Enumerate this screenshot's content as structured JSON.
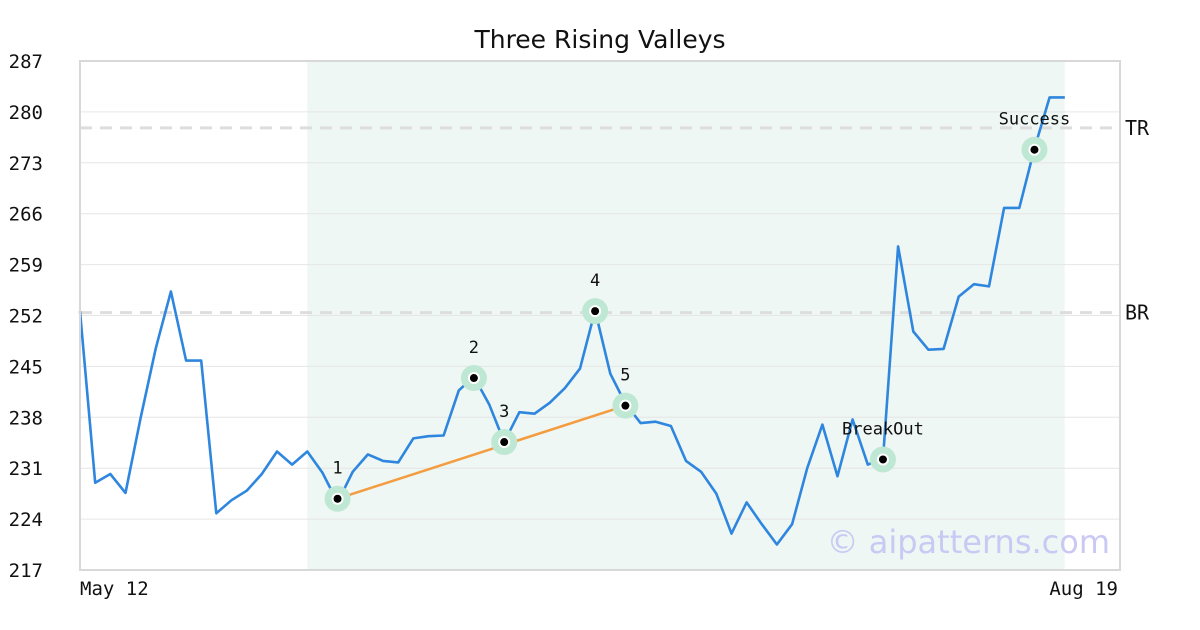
{
  "chart_data": {
    "type": "line",
    "title": "Three Rising Valleys",
    "xlabel": "",
    "ylabel": "",
    "ylim": [
      217,
      287
    ],
    "y_ticks": [
      217,
      224,
      231,
      238,
      245,
      252,
      259,
      266,
      273,
      280,
      287
    ],
    "y_tick_labels": [
      "217",
      "224",
      "231",
      "238",
      "245",
      "252",
      "259",
      "266",
      "273",
      "280",
      "287"
    ],
    "x_tick_labels": [
      "May 12",
      "Aug 19"
    ],
    "grid": "horizontal",
    "pattern_shaded_range": [
      15,
      65
    ],
    "series": [
      {
        "color": "#2e86de",
        "values": [
          252.6,
          229.0,
          230.2,
          227.6,
          237.9,
          247.5,
          255.3,
          245.8,
          245.8,
          224.8,
          226.6,
          227.9,
          230.2,
          233.3,
          231.5,
          233.3,
          230.4,
          226.3,
          230.5,
          232.9,
          232.0,
          231.8,
          235.1,
          235.4,
          235.5,
          241.7,
          243.6,
          239.8,
          234.6,
          238.7,
          238.5,
          240.0,
          242.0,
          244.7,
          252.7,
          244.0,
          239.9,
          237.2,
          237.4,
          236.8,
          232.0,
          230.5,
          227.5,
          222.0,
          226.3,
          223.3,
          220.5,
          223.3,
          231.0,
          237.0,
          229.9,
          237.7,
          231.5,
          232.3,
          261.5,
          249.8,
          247.3,
          247.4,
          254.6,
          256.3,
          256.0,
          266.8,
          266.8,
          275.0,
          282.0,
          282.0
        ]
      }
    ],
    "markers": [
      {
        "index": 17,
        "value": 226.8,
        "label": "1"
      },
      {
        "index": 26,
        "value": 243.4,
        "label": "2"
      },
      {
        "index": 28,
        "value": 234.6,
        "label": "3"
      },
      {
        "index": 34,
        "value": 252.6,
        "label": "4"
      },
      {
        "index": 36,
        "value": 239.6,
        "label": "5"
      },
      {
        "index": 53,
        "value": 232.2,
        "label": "BreakOut"
      },
      {
        "index": 63,
        "value": 274.8,
        "label": "Success"
      }
    ],
    "trendline": {
      "from_index": 17,
      "from_value": 226.8,
      "to_index": 36,
      "to_value": 239.6,
      "color": "#f39c40"
    },
    "reference_lines": [
      {
        "value": 277.8,
        "label": "TR"
      },
      {
        "value": 252.4,
        "label": "BR"
      }
    ],
    "colors": {
      "line": "#2e86de",
      "trendline": "#f39c40",
      "marker_halo": "#bfe8d4",
      "shade": "#eef7f3",
      "refline": "#dddddd",
      "grid": "#e6e6e6",
      "frame": "#d8d8d8"
    },
    "watermark": "© aipatterns.com"
  }
}
